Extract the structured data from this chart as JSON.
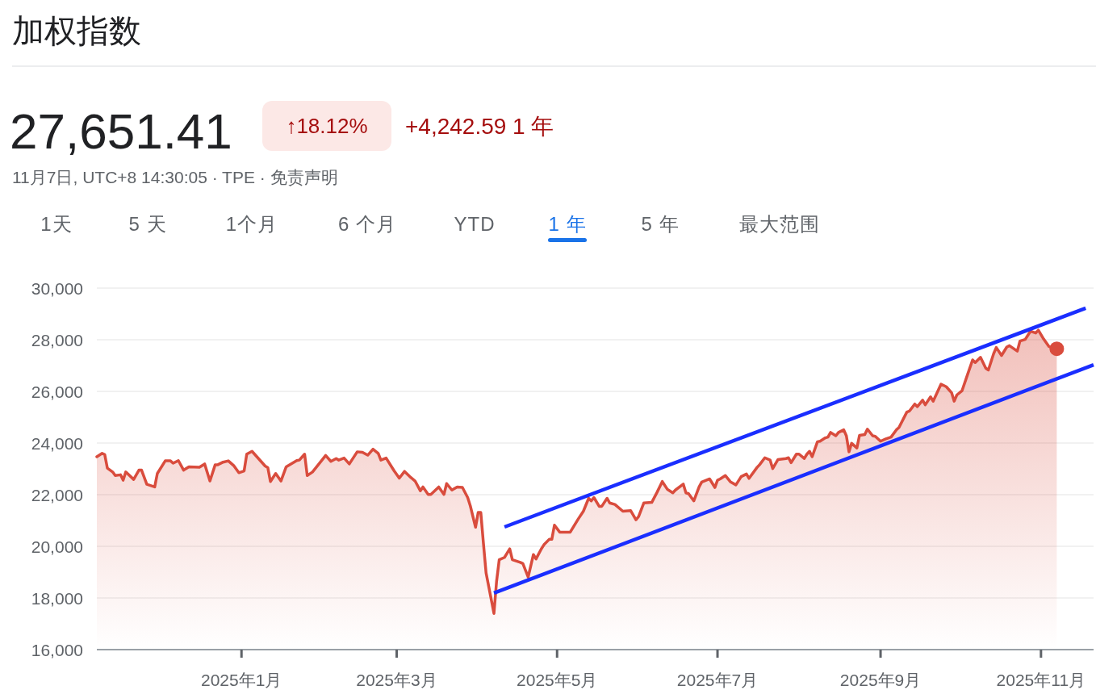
{
  "chart_data": {
    "type": "area",
    "title": "加权指数",
    "subtitle": "27,651.41",
    "annotations": [
      "↑18.12%",
      "+4,242.59 1 年",
      "11月7日, UTC+8 14:30:05 · TPE · 免责声明",
      "1天",
      "5 天",
      "1个月",
      "6 个月",
      "YTD",
      "1 年",
      "5 年",
      "最大范围"
    ],
    "xlim": [
      "2024-11-07",
      "2025-11-21"
    ],
    "ylim": [
      16000,
      30000
    ],
    "xticks": [
      {
        "value": "2025-01-01",
        "label": "2025年1月"
      },
      {
        "value": "2025-03-01",
        "label": "2025年3月"
      },
      {
        "value": "2025-05-01",
        "label": "2025年5月"
      },
      {
        "value": "2025-07-01",
        "label": "2025年7月"
      },
      {
        "value": "2025-09-01",
        "label": "2025年9月"
      },
      {
        "value": "2025-11-01",
        "label": "2025年11月"
      }
    ],
    "yticks": [
      {
        "value": 16000,
        "label": "16,000"
      },
      {
        "value": 18000,
        "label": "18,000"
      },
      {
        "value": 20000,
        "label": "20,000"
      },
      {
        "value": 22000,
        "label": "22,000"
      },
      {
        "value": 24000,
        "label": "24,000"
      },
      {
        "value": 26000,
        "label": "26,000"
      },
      {
        "value": 28000,
        "label": "28,000"
      },
      {
        "value": 30000,
        "label": "30,000"
      }
    ],
    "grid": "y",
    "series": [
      {
        "type": "area",
        "color": "#d94c3d",
        "x": [
          "2024-11-07",
          "2024-11-09",
          "2024-11-10",
          "2024-11-11",
          "2024-11-13",
          "2024-11-14",
          "2024-11-16",
          "2024-11-17",
          "2024-11-18",
          "2024-11-21",
          "2024-11-23",
          "2024-11-24",
          "2024-11-26",
          "2024-11-29",
          "2024-11-30",
          "2024-12-03",
          "2024-12-05",
          "2024-12-06",
          "2024-12-08",
          "2024-12-10",
          "2024-12-12",
          "2024-12-16",
          "2024-12-18",
          "2024-12-20",
          "2024-12-22",
          "2024-12-23",
          "2024-12-25",
          "2024-12-27",
          "2024-12-29",
          "2024-12-31",
          "2025-01-02",
          "2025-01-03",
          "2025-01-05",
          "2025-01-10",
          "2025-01-11",
          "2025-01-12",
          "2025-01-14",
          "2025-01-16",
          "2025-01-18",
          "2025-01-22",
          "2025-01-23",
          "2025-01-25",
          "2025-01-26",
          "2025-01-28",
          "2025-01-31",
          "2025-02-02",
          "2025-02-04",
          "2025-02-06",
          "2025-02-07",
          "2025-02-09",
          "2025-02-11",
          "2025-02-14",
          "2025-02-16",
          "2025-02-18",
          "2025-02-20",
          "2025-02-22",
          "2025-02-23",
          "2025-02-25",
          "2025-02-28",
          "2025-03-02",
          "2025-03-04",
          "2025-03-06",
          "2025-03-08",
          "2025-03-10",
          "2025-03-11",
          "2025-03-13",
          "2025-03-14",
          "2025-03-17",
          "2025-03-19",
          "2025-03-20",
          "2025-03-22",
          "2025-03-24",
          "2025-03-26",
          "2025-03-28",
          "2025-03-29",
          "2025-03-31",
          "2025-04-01",
          "2025-04-02",
          "2025-04-03",
          "2025-04-04",
          "2025-04-05",
          "2025-04-07",
          "2025-04-08",
          "2025-04-09",
          "2025-04-11",
          "2025-04-13",
          "2025-04-14",
          "2025-04-17",
          "2025-04-18",
          "2025-04-20",
          "2025-04-22",
          "2025-04-23",
          "2025-04-25",
          "2025-04-26",
          "2025-04-28",
          "2025-04-29",
          "2025-04-30",
          "2025-05-02",
          "2025-05-06",
          "2025-05-09",
          "2025-05-11",
          "2025-05-13",
          "2025-05-14",
          "2025-05-15",
          "2025-05-17",
          "2025-05-18",
          "2025-05-20",
          "2025-05-21",
          "2025-05-23",
          "2025-05-26",
          "2025-05-29",
          "2025-05-31",
          "2025-06-01",
          "2025-06-03",
          "2025-06-06",
          "2025-06-08",
          "2025-06-10",
          "2025-06-12",
          "2025-06-14",
          "2025-06-15",
          "2025-06-18",
          "2025-06-19",
          "2025-06-20",
          "2025-06-22",
          "2025-06-24",
          "2025-06-25",
          "2025-06-28",
          "2025-06-30",
          "2025-07-01",
          "2025-07-02",
          "2025-07-04",
          "2025-07-06",
          "2025-07-08",
          "2025-07-10",
          "2025-07-12",
          "2025-07-13",
          "2025-07-16",
          "2025-07-17",
          "2025-07-19",
          "2025-07-21",
          "2025-07-22",
          "2025-07-24",
          "2025-07-27",
          "2025-07-28",
          "2025-07-29",
          "2025-07-31",
          "2025-08-01",
          "2025-08-03",
          "2025-08-04",
          "2025-08-05",
          "2025-08-06",
          "2025-08-08",
          "2025-08-09",
          "2025-08-11",
          "2025-08-12",
          "2025-08-13",
          "2025-08-15",
          "2025-08-16",
          "2025-08-18",
          "2025-08-19",
          "2025-08-20",
          "2025-08-21",
          "2025-08-23",
          "2025-08-24",
          "2025-08-26",
          "2025-08-27",
          "2025-08-29",
          "2025-08-30",
          "2025-09-01",
          "2025-09-03",
          "2025-09-05",
          "2025-09-07",
          "2025-09-08",
          "2025-09-11",
          "2025-09-12",
          "2025-09-14",
          "2025-09-15",
          "2025-09-17",
          "2025-09-18",
          "2025-09-20",
          "2025-09-21",
          "2025-09-24",
          "2025-09-26",
          "2025-09-28",
          "2025-09-29",
          "2025-09-30",
          "2025-10-02",
          "2025-10-04",
          "2025-10-06",
          "2025-10-07",
          "2025-10-09",
          "2025-10-11",
          "2025-10-12",
          "2025-10-14",
          "2025-10-15",
          "2025-10-17",
          "2025-10-19",
          "2025-10-20",
          "2025-10-23",
          "2025-10-24",
          "2025-10-26",
          "2025-10-28",
          "2025-10-30",
          "2025-10-31",
          "2025-11-02",
          "2025-11-04",
          "2025-11-07"
        ],
        "values": [
          23470,
          23600,
          23550,
          23030,
          22880,
          22740,
          22770,
          22560,
          22880,
          22590,
          22950,
          22950,
          22400,
          22300,
          22820,
          23310,
          23310,
          23220,
          23320,
          22950,
          23080,
          23060,
          23190,
          22530,
          23160,
          23160,
          23260,
          23310,
          23130,
          22850,
          22920,
          23570,
          23680,
          23110,
          23050,
          22510,
          22820,
          22530,
          23080,
          23320,
          23340,
          23570,
          22740,
          22880,
          23260,
          23520,
          23290,
          23400,
          23340,
          23420,
          23190,
          23660,
          23640,
          23530,
          23760,
          23600,
          23340,
          23420,
          22930,
          22640,
          22900,
          22700,
          22530,
          22150,
          22300,
          22010,
          22010,
          22300,
          22010,
          22430,
          22180,
          22300,
          22280,
          21890,
          21570,
          20740,
          21310,
          21310,
          20110,
          18970,
          18450,
          17400,
          18650,
          19480,
          19570,
          19900,
          19480,
          19380,
          19330,
          18810,
          19680,
          19510,
          19900,
          20060,
          20270,
          20270,
          20820,
          20550,
          20550,
          21050,
          21360,
          21860,
          21760,
          21890,
          21550,
          21550,
          21860,
          21680,
          21620,
          21360,
          21380,
          21030,
          21150,
          21680,
          21700,
          22090,
          22510,
          22200,
          22070,
          22180,
          22410,
          22070,
          22040,
          21760,
          22300,
          22490,
          22610,
          22280,
          22560,
          22610,
          22740,
          22490,
          22380,
          22700,
          22800,
          22630,
          23050,
          23160,
          23430,
          23340,
          23010,
          23360,
          23400,
          23430,
          23240,
          23570,
          23570,
          23400,
          23570,
          23680,
          23470,
          24050,
          24070,
          24200,
          24230,
          24410,
          24280,
          24410,
          24510,
          24280,
          23660,
          23990,
          23810,
          24300,
          24330,
          24540,
          24280,
          24260,
          24070,
          24160,
          24230,
          24510,
          24600,
          25200,
          25240,
          25510,
          25410,
          25660,
          25480,
          25790,
          25620,
          26280,
          26180,
          25950,
          25620,
          25860,
          26030,
          26630,
          27220,
          27120,
          27320,
          26900,
          26830,
          27460,
          27700,
          27390,
          27720,
          27770,
          27560,
          27950,
          28010,
          28330,
          28260,
          28370,
          28030,
          27740,
          27651.41
        ]
      },
      {
        "type": "line",
        "color": "#1a2eff",
        "x": [
          "2025-04-11",
          "2025-11-18"
        ],
        "values": [
          20750,
          29220
        ]
      },
      {
        "type": "line",
        "color": "#1a2eff",
        "x": [
          "2025-04-07",
          "2025-11-21"
        ],
        "values": [
          18190,
          27030
        ]
      }
    ]
  }
}
